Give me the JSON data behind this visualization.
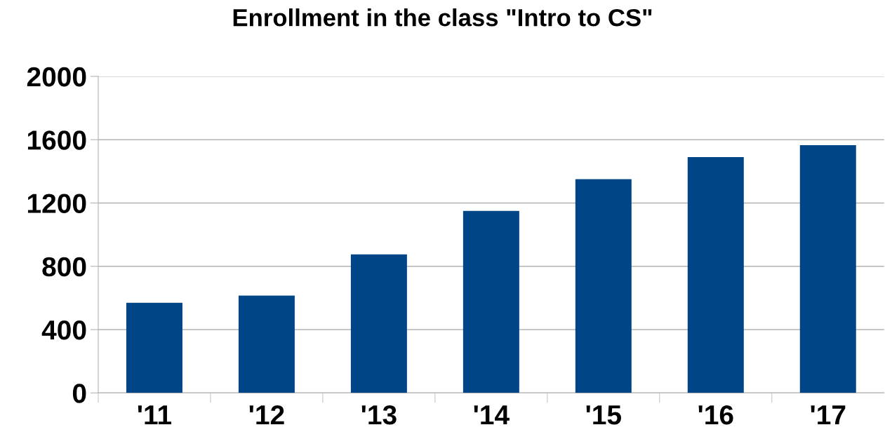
{
  "chart_data": {
    "type": "bar",
    "title": "Enrollment in the class \"Intro to CS\"",
    "categories": [
      "'11",
      "'12",
      "'13",
      "'14",
      "'15",
      "'16",
      "'17"
    ],
    "values": [
      570,
      615,
      875,
      1150,
      1350,
      1490,
      1565
    ],
    "color": "#004586",
    "ylim": [
      0,
      2000
    ],
    "yticks": [
      0,
      400,
      800,
      1200,
      1600,
      2000
    ],
    "grid": "y",
    "legend": false
  }
}
